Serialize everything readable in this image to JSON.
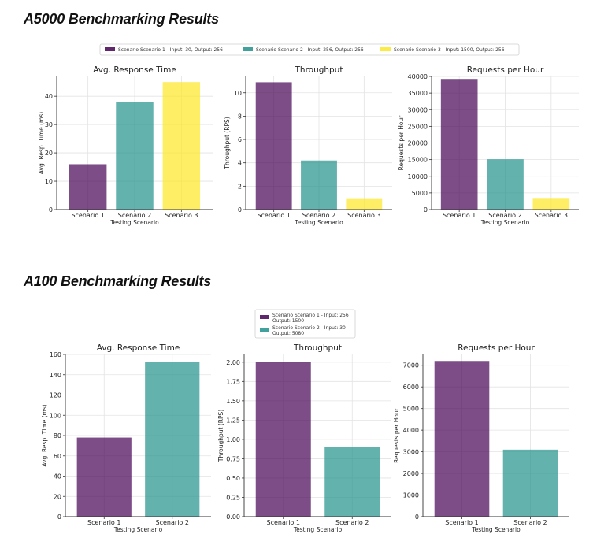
{
  "sections": [
    {
      "title": "A5000 Benchmarking Results",
      "legend": [
        "Scenario Scenario 1 - Input: 30, Output: 256",
        "Scenario Scenario 2 - Input: 256, Output: 256",
        "Scenario Scenario 3 - Input: 1500, Output: 256"
      ],
      "colors": [
        "#440154",
        "#21918c",
        "#fde725"
      ]
    },
    {
      "title": "A100 Benchmarking Results",
      "legend": [
        [
          "Scenario Scenario 1 - Input: 256",
          "Output: 1500"
        ],
        [
          "Scenario Scenario 2 - Input: 30",
          "Output: 5080"
        ]
      ],
      "colors": [
        "#440154",
        "#21918c"
      ]
    }
  ],
  "chart_data": [
    {
      "type": "bar",
      "title": "Avg. Response Time",
      "categories": [
        "Scenario 1",
        "Scenario 2",
        "Scenario 3"
      ],
      "values": [
        16,
        38,
        45
      ],
      "xlabel": "Testing Scenario",
      "ylabel": "Avg. Resp. Time (ms)",
      "ylim": [
        0,
        47
      ],
      "yticks": [
        "0",
        "10",
        "20",
        "30",
        "40"
      ],
      "grid": true
    },
    {
      "type": "bar",
      "title": "Throughput",
      "categories": [
        "Scenario 1",
        "Scenario 2",
        "Scenario 3"
      ],
      "values": [
        10.9,
        4.2,
        0.9
      ],
      "xlabel": "Testing Scenario",
      "ylabel": "Throughput (RPS)",
      "ylim": [
        0,
        11.4
      ],
      "yticks": [
        "0",
        "2",
        "4",
        "6",
        "8",
        "10"
      ],
      "grid": true
    },
    {
      "type": "bar",
      "title": "Requests per Hour",
      "categories": [
        "Scenario 1",
        "Scenario 2",
        "Scenario 3"
      ],
      "values": [
        39240,
        15120,
        3240
      ],
      "xlabel": "Testing Scenario",
      "ylabel": "Requests per Hour",
      "ylim": [
        0,
        40000
      ],
      "yticks": [
        "0",
        "5000",
        "10000",
        "15000",
        "20000",
        "25000",
        "30000",
        "35000",
        "40000"
      ],
      "grid": true
    },
    {
      "type": "bar",
      "title": "Avg. Response Time",
      "categories": [
        "Scenario 1",
        "Scenario 2"
      ],
      "values": [
        78,
        153
      ],
      "xlabel": "Testing Scenario",
      "ylabel": "Avg. Resp. Time (ms)",
      "ylim": [
        0,
        160
      ],
      "yticks": [
        "0",
        "20",
        "40",
        "60",
        "80",
        "100",
        "120",
        "140",
        "160"
      ],
      "grid": true
    },
    {
      "type": "bar",
      "title": "Throughput",
      "categories": [
        "Scenario 1",
        "Scenario 2"
      ],
      "values": [
        2.0,
        0.9
      ],
      "xlabel": "Testing Scenario",
      "ylabel": "Throughput (RPS)",
      "ylim": [
        0,
        2.1
      ],
      "yticks": [
        "0.00",
        "0.25",
        "0.50",
        "0.75",
        "1.00",
        "1.25",
        "1.50",
        "1.75",
        "2.00"
      ],
      "grid": true
    },
    {
      "type": "bar",
      "title": "Requests per Hour",
      "categories": [
        "Scenario 1",
        "Scenario 2"
      ],
      "values": [
        7200,
        3100
      ],
      "xlabel": "Testing Scenario",
      "ylabel": "Requests per Hour",
      "ylim": [
        0,
        7500
      ],
      "yticks": [
        "0",
        "1000",
        "2000",
        "3000",
        "4000",
        "5000",
        "6000",
        "7000"
      ],
      "grid": true
    }
  ]
}
